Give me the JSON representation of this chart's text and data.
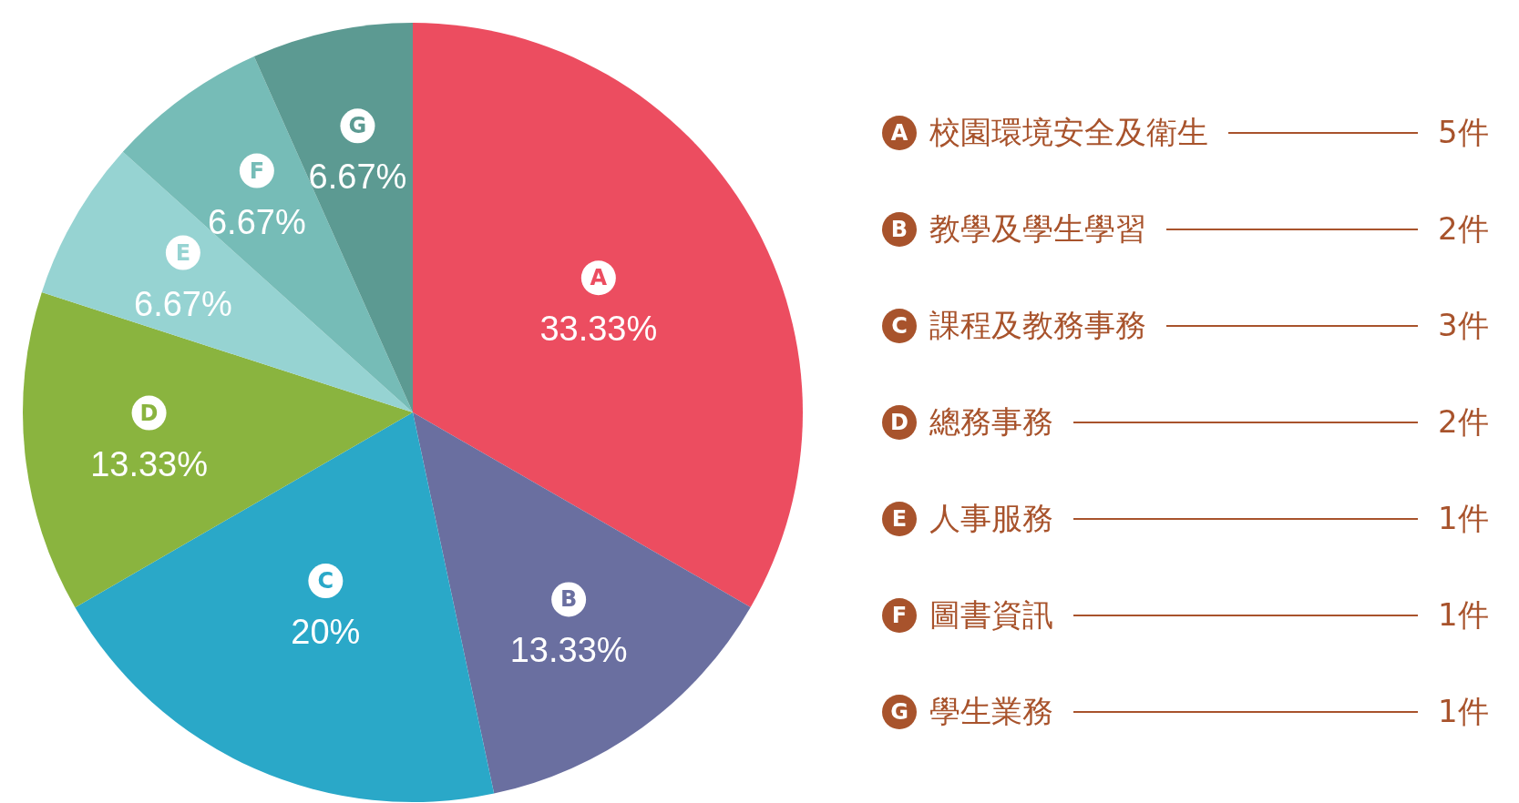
{
  "chart_data": {
    "type": "pie",
    "categories": [
      "A",
      "B",
      "C",
      "D",
      "E",
      "F",
      "G"
    ],
    "values": [
      33.33,
      13.33,
      20,
      13.33,
      6.67,
      6.67,
      6.67
    ],
    "value_labels": [
      "33.33%",
      "13.33%",
      "20%",
      "13.33%",
      "6.67%",
      "6.67%",
      "6.67%"
    ],
    "colors": [
      "#ec4d60",
      "#6a6fa0",
      "#2aa8c8",
      "#8ab43f",
      "#96d3d2",
      "#76bcb7",
      "#5c9a92"
    ],
    "annotations": [
      "校園環境安全及衛生",
      "教學及學生學習",
      "課程及教務事務",
      "總務事務",
      "人事服務",
      "圖書資訊",
      "學生業務",
      "5件",
      "2件",
      "3件",
      "2件",
      "1件",
      "1件",
      "1件"
    ]
  }
}
